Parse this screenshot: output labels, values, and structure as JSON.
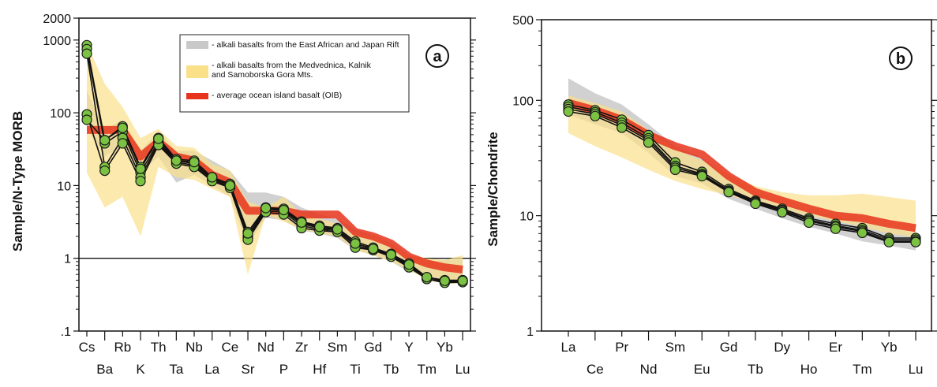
{
  "colors": {
    "gray_band": "#c9c9c9",
    "yellow_band": "#fbe08a",
    "oib_line": "#e8341c",
    "oib_overlap": "#f07a22",
    "sample_marker": "#7cc242",
    "sample_line": "#111111"
  },
  "chart_data": [
    {
      "type": "line",
      "panel": "a",
      "ylabel": "Sample/N-Type MORB",
      "yscale": "log",
      "ylim": [
        0.1,
        2000
      ],
      "ytick_labels": [
        ".1",
        "1",
        "10",
        "100",
        "1000",
        "2000"
      ],
      "ytick_values": [
        0.1,
        1,
        10,
        100,
        1000,
        2000
      ],
      "reference_line": 1,
      "categories": [
        "Cs",
        "Ba",
        "Rb",
        "K",
        "Th",
        "Ta",
        "Nb",
        "La",
        "Ce",
        "Sr",
        "Nd",
        "P",
        "Zr",
        "Hf",
        "Sm",
        "Ti",
        "Gd",
        "Tb",
        "Y",
        "Tm",
        "Yb",
        "Lu"
      ],
      "legend": [
        {
          "key": "gray",
          "label_lines": [
            "- alkali basalts from the East African and Japan Rift"
          ]
        },
        {
          "key": "yellow",
          "label_lines": [
            "- alkali basalts from the Medvednica, Kalnik",
            "and Samoborska Gora Mts."
          ]
        },
        {
          "key": "red",
          "label_lines": [
            "- average ocean island basalt (OIB)"
          ]
        }
      ],
      "legend_placement": "top-center",
      "gray_band": {
        "upper": [
          200,
          60,
          80,
          30,
          55,
          30,
          30,
          22,
          16,
          8,
          8,
          7,
          5,
          4,
          3.5,
          2.5,
          2.1,
          1.6,
          1.1,
          0.9,
          0.95,
          0.95
        ],
        "lower": [
          60,
          25,
          35,
          15,
          25,
          11,
          14,
          10,
          7,
          1.5,
          3.6,
          3.3,
          2.4,
          2.2,
          1.9,
          1.3,
          1.1,
          0.9,
          0.65,
          0.6,
          0.5,
          0.5
        ]
      },
      "yellow_band": {
        "upper": [
          900,
          250,
          120,
          45,
          60,
          35,
          33,
          20,
          16,
          6,
          5,
          7,
          4,
          3.5,
          3,
          2.2,
          2,
          1.5,
          1.1,
          1,
          0.95,
          1.1
        ],
        "lower": [
          15,
          5,
          7,
          2,
          18,
          13,
          12,
          9,
          7,
          0.6,
          4,
          3.2,
          2.5,
          2.2,
          2,
          1.3,
          1.1,
          0.9,
          0.7,
          0.5,
          0.45,
          0.45
        ]
      },
      "oib": [
        58,
        58,
        58,
        25,
        40,
        25,
        22,
        14,
        11,
        4.5,
        4.5,
        4.5,
        4,
        4,
        4,
        2.3,
        2,
        1.6,
        1.05,
        0.85,
        0.75,
        0.7
      ],
      "series": [
        {
          "values": [
            850,
            42,
            65,
            18,
            45,
            23,
            22,
            13,
            10.5,
            2.3,
            5,
            4.8,
            3.2,
            2.8,
            2.6,
            1.7,
            1.4,
            1.15,
            0.85,
            0.55,
            0.5,
            0.5
          ]
        },
        {
          "values": [
            750,
            38,
            55,
            15,
            40,
            22,
            20,
            12.5,
            10,
            2,
            4.8,
            4.5,
            3,
            2.6,
            2.5,
            1.6,
            1.35,
            1.1,
            0.8,
            0.55,
            0.48,
            0.5
          ]
        },
        {
          "values": [
            650,
            18,
            45,
            13,
            38,
            21,
            19,
            12,
            9.5,
            1.9,
            4.5,
            4.3,
            2.8,
            2.5,
            2.4,
            1.5,
            1.3,
            1.1,
            0.78,
            0.52,
            0.47,
            0.48
          ]
        },
        {
          "values": [
            95,
            16,
            38,
            11.5,
            36,
            20,
            18,
            11.5,
            9.3,
            1.8,
            4.3,
            4,
            2.6,
            2.4,
            2.3,
            1.4,
            1.3,
            1.05,
            0.75,
            0.52,
            0.46,
            0.47
          ]
        },
        {
          "values": [
            80,
            42,
            62,
            17,
            44,
            22,
            21,
            13,
            10,
            2.2,
            4.9,
            4.6,
            3.1,
            2.7,
            2.5,
            1.6,
            1.35,
            1.12,
            0.82,
            0.55,
            0.49,
            0.49
          ]
        }
      ]
    },
    {
      "type": "line",
      "panel": "b",
      "ylabel": "Sample/Chondrite",
      "yscale": "log",
      "ylim": [
        1,
        500
      ],
      "ytick_labels": [
        "1",
        "10",
        "100",
        "500"
      ],
      "ytick_values": [
        1,
        10,
        100,
        500
      ],
      "categories": [
        "La",
        "Ce",
        "Pr",
        "Nd",
        "Sm",
        "Eu",
        "Gd",
        "Tb",
        "Dy",
        "Ho",
        "Er",
        "Tm",
        "Yb",
        "Lu"
      ],
      "sample_categories": [
        "La",
        "Ce",
        "Pr",
        "Nd",
        "Sm",
        "Eu",
        "Gd",
        "Tb",
        "Dy",
        "Ho",
        "Er",
        "Tm",
        "Yb",
        "Lu"
      ],
      "gray_band": {
        "upper": [
          155,
          115,
          92,
          62,
          40,
          32,
          22,
          16,
          13,
          11,
          10,
          9,
          8,
          7
        ],
        "lower": [
          75,
          62,
          52,
          35,
          22,
          19,
          14,
          11.5,
          9.5,
          8,
          7,
          6,
          5.5,
          5
        ]
      },
      "yellow_band": {
        "upper": [
          110,
          95,
          80,
          55,
          38,
          30,
          23,
          18,
          16,
          15,
          15,
          15.5,
          14.5,
          13.5
        ]
      },
      "yellow_band_lower": [
        52,
        40,
        32,
        25,
        20,
        17,
        15,
        13,
        11,
        10,
        9,
        8,
        7,
        6.5
      ],
      "oib": [
        95,
        82,
        68,
        50,
        40,
        34,
        22,
        16,
        13.5,
        11.5,
        10,
        9.5,
        8.5,
        7.8
      ],
      "series": [
        {
          "values": [
            92,
            82,
            68,
            50,
            29,
            24,
            17,
            13.5,
            11.5,
            9.5,
            8.5,
            7.8,
            6.4,
            6.4
          ]
        },
        {
          "values": [
            88,
            79,
            64,
            47,
            27,
            23,
            16.5,
            13.2,
            11.2,
            9.2,
            8.2,
            7.5,
            6.2,
            6.2
          ]
        },
        {
          "values": [
            84,
            76,
            61,
            45,
            26,
            22.5,
            16.2,
            13,
            11,
            9,
            8,
            7.3,
            6,
            6
          ]
        },
        {
          "values": [
            80,
            73,
            58,
            43,
            25,
            22,
            16,
            12.7,
            10.7,
            8.7,
            7.7,
            7.1,
            5.9,
            5.9
          ]
        }
      ]
    }
  ]
}
